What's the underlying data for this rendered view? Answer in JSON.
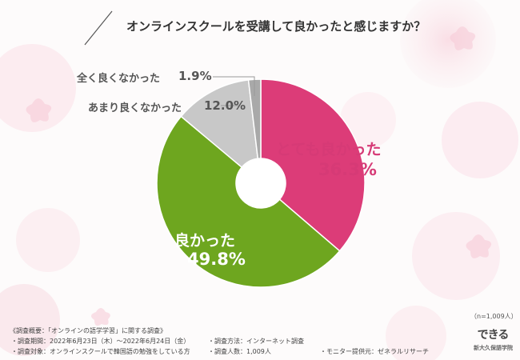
{
  "title": "オンラインスクールを受講して良かったと感じますか？",
  "colors": {
    "very_good": "#dc3c78",
    "good": "#6ea61f",
    "not_good": "#c8c8c8",
    "not_at_all": "#a9a9a9"
  },
  "chart_data": {
    "type": "pie",
    "donut": true,
    "categories": [
      "とても良かった",
      "良かった",
      "あまり良くなかった",
      "全く良くなかった"
    ],
    "values": [
      36.3,
      49.8,
      12.0,
      1.9
    ],
    "value_labels": [
      "36.3%",
      "49.8%",
      "12.0%",
      "1.9%"
    ]
  },
  "sample_note": "（n=1,009人）",
  "footer": {
    "heading": "《調査概要：「オンラインの語学学習」に関する調査》",
    "period": "・調査期間：2022年6月23日（木）～2022年6月24日（金）",
    "method": "・調査方法：インターネット調査",
    "target": "・調査対象：オンラインスクールで韓国語の勉強をしている方",
    "count": "・調査人数：1,009人",
    "provider": "・モニター提供元：ゼネラルリサーチ"
  },
  "logo": {
    "mark": "できる",
    "name": "新大久保語学院"
  }
}
